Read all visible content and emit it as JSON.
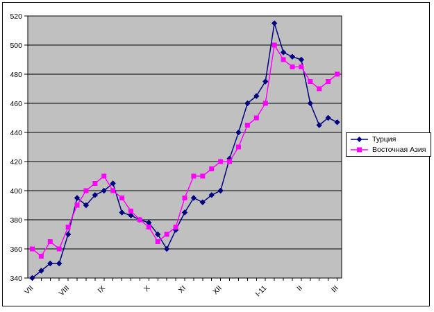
{
  "window": {
    "background_color": "#FFFFFF",
    "frame_border_color": "#000000"
  },
  "chart_data": {
    "type": "line",
    "title": "",
    "xlabel": "",
    "ylabel": "",
    "x_axis": {
      "num_categories": 35,
      "categories": [
        "VII",
        "",
        "",
        "",
        "VIII",
        "",
        "",
        "",
        "IX",
        "",
        "",
        "",
        "",
        "X",
        "",
        "",
        "",
        "XI",
        "",
        "",
        "",
        "XII",
        "",
        "",
        "",
        "",
        "I-11",
        "",
        "",
        "",
        "II",
        "",
        "",
        "",
        "III"
      ],
      "visible_tick_labels": [
        "VII",
        "VIII",
        "IX",
        "X",
        "XI",
        "XII",
        "I-11",
        "II",
        "III"
      ],
      "label_rotation_deg": -45
    },
    "y_axis": {
      "min": 340,
      "max": 520,
      "step": 20,
      "ticks": [
        340,
        360,
        380,
        400,
        420,
        440,
        460,
        480,
        500,
        520
      ]
    },
    "plot_style": {
      "background": "#C0C0C0",
      "gridline_color": "#000000",
      "axis_color": "#000000",
      "grid": "horizontal",
      "legend_position": "right"
    },
    "series": [
      {
        "name": "Турция",
        "color": "#000080",
        "marker": "diamond",
        "values": [
          340,
          345,
          350,
          350,
          370,
          395,
          390,
          397,
          400,
          405,
          385,
          383,
          380,
          378,
          370,
          360,
          373,
          385,
          395,
          392,
          397,
          400,
          422,
          440,
          460,
          465,
          475,
          515,
          495,
          492,
          490,
          460,
          445,
          450,
          447
        ]
      },
      {
        "name": "Восточная Азия",
        "color": "#FF00FF",
        "marker": "square",
        "values": [
          360,
          355,
          365,
          360,
          375,
          390,
          400,
          405,
          410,
          400,
          395,
          386,
          380,
          375,
          365,
          370,
          375,
          395,
          410,
          410,
          415,
          420,
          420,
          430,
          445,
          450,
          460,
          500,
          490,
          485,
          485,
          475,
          470,
          475,
          480
        ]
      }
    ]
  }
}
